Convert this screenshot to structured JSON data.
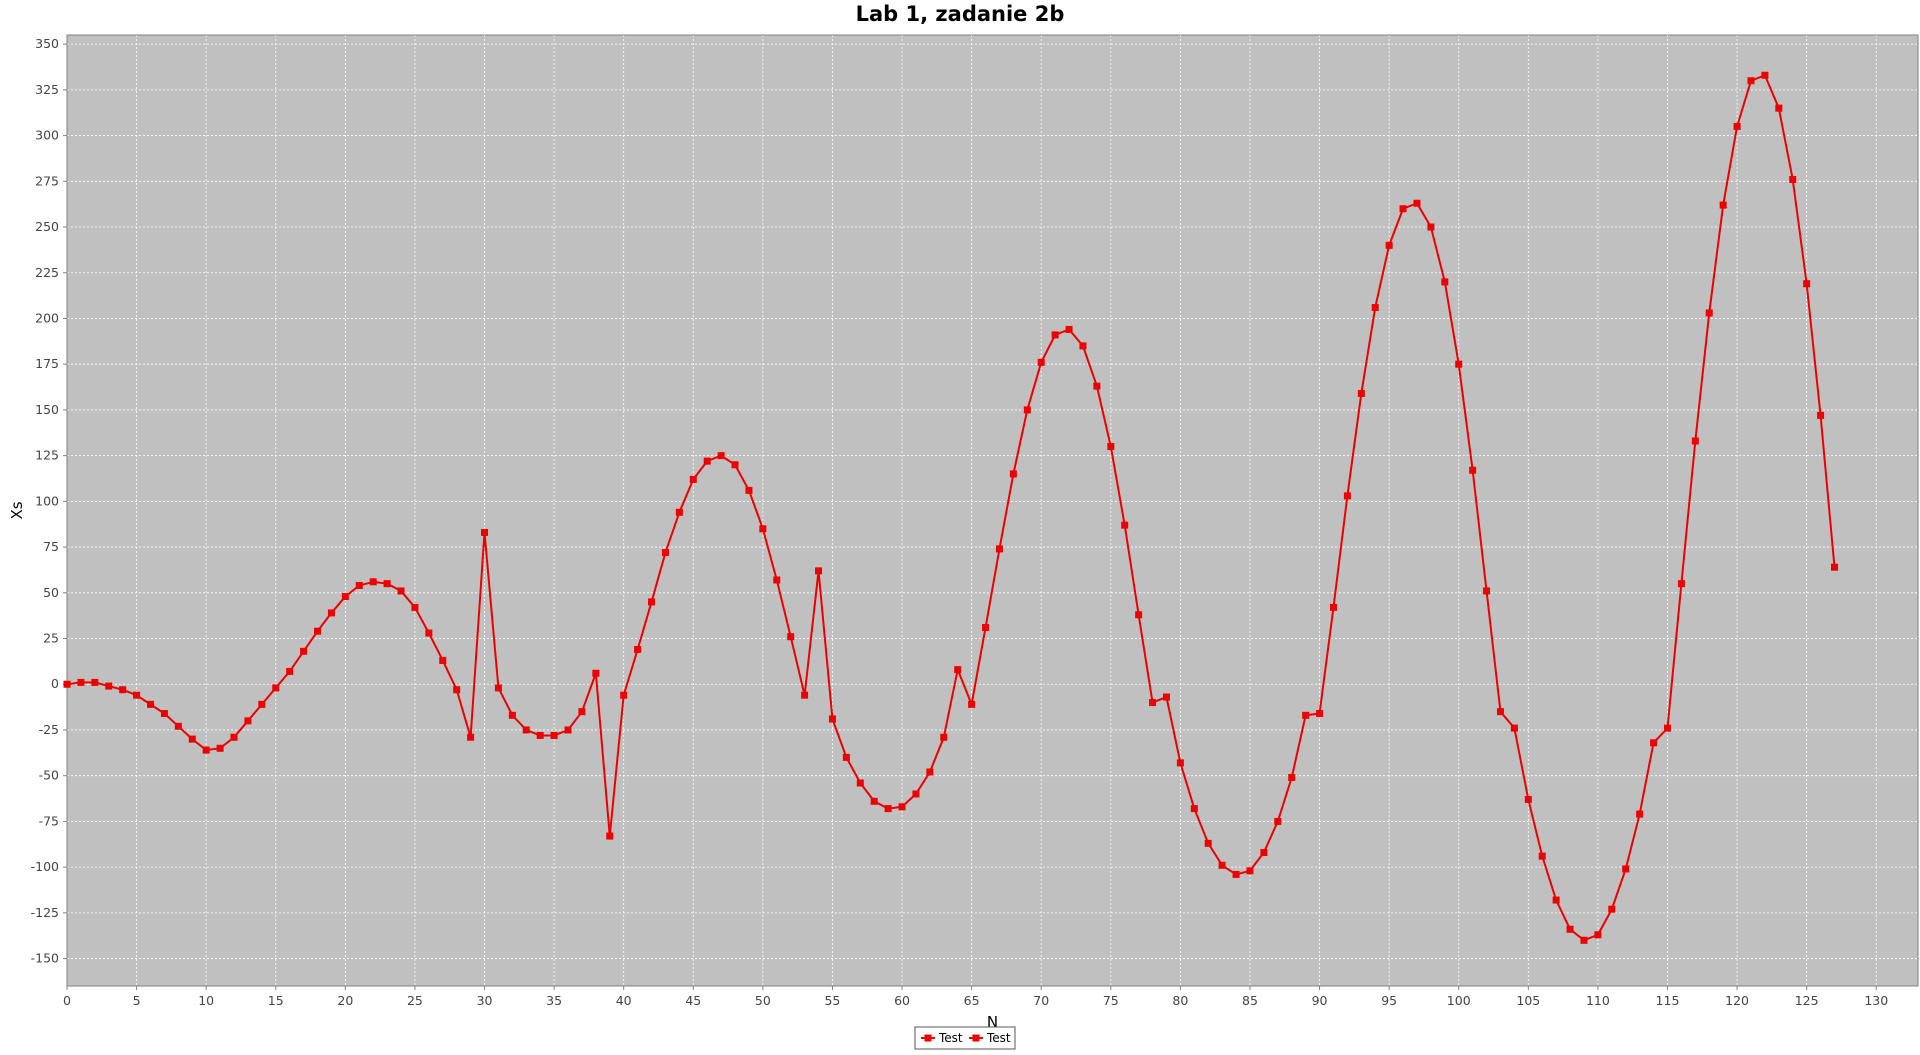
{
  "chart_data": {
    "type": "line",
    "title": "Lab 1, zadanie 2b",
    "xlabel": "N",
    "ylabel": "Xs",
    "xlim": [
      0,
      133
    ],
    "ylim": [
      -165,
      355
    ],
    "x_ticks": [
      0,
      5,
      10,
      15,
      20,
      25,
      30,
      35,
      40,
      45,
      50,
      55,
      60,
      65,
      70,
      75,
      80,
      85,
      90,
      95,
      100,
      105,
      110,
      115,
      120,
      125,
      130
    ],
    "y_ticks": [
      -150,
      -125,
      -100,
      -75,
      -50,
      -25,
      0,
      25,
      50,
      75,
      100,
      125,
      150,
      175,
      200,
      225,
      250,
      275,
      300,
      325,
      350
    ],
    "grid": true,
    "plot_background": "#c0c0c0",
    "series_color": "#ee0000",
    "marker": "square",
    "legend_position": "bottom-center",
    "legend_entries": [
      "Test",
      "Test"
    ],
    "series": [
      {
        "name": "Test",
        "x": [
          0,
          1,
          2,
          3,
          4,
          5,
          6,
          7,
          8,
          9,
          10,
          11,
          12,
          13,
          14,
          15,
          16,
          17,
          18,
          19,
          20,
          21,
          22,
          23,
          24,
          25,
          26,
          27,
          28,
          29,
          30,
          31,
          32,
          33,
          34,
          35,
          36,
          37,
          38,
          39,
          40,
          41,
          42,
          43,
          44,
          45,
          46,
          47,
          48,
          49,
          50,
          51,
          52,
          53,
          54,
          55,
          56,
          57,
          58,
          59,
          60,
          61,
          62,
          63,
          64,
          65,
          66,
          67,
          68,
          69,
          70,
          71,
          72,
          73,
          74,
          75,
          76,
          77,
          78,
          79,
          80,
          81,
          82,
          83,
          84,
          85,
          86,
          87,
          88,
          89,
          90,
          91,
          92,
          93,
          94,
          95,
          96,
          97,
          98,
          99,
          100,
          101,
          102,
          103,
          104,
          105,
          106,
          107,
          108,
          109,
          110,
          111,
          112,
          113,
          114,
          115,
          116,
          117,
          118,
          119,
          120,
          121,
          122,
          123,
          124,
          125,
          126,
          127
        ],
        "values": [
          0,
          1,
          1,
          -1,
          -3,
          -6,
          -11,
          -16,
          -23,
          -30,
          -36,
          -35,
          -29,
          -20,
          -11,
          -2,
          7,
          18,
          29,
          39,
          48,
          54,
          56,
          55,
          51,
          42,
          28,
          13,
          -3,
          -29,
          83,
          -2,
          -17,
          -25,
          -28,
          -28,
          -25,
          -15,
          6,
          -83,
          -6,
          19,
          45,
          72,
          94,
          112,
          122,
          125,
          120,
          106,
          85,
          57,
          26,
          -6,
          62,
          -19,
          -40,
          -54,
          -64,
          -68,
          -67,
          -60,
          -48,
          -29,
          8,
          -11,
          31,
          74,
          115,
          150,
          176,
          191,
          194,
          185,
          163,
          130,
          87,
          38,
          -10,
          -7,
          -43,
          -68,
          -87,
          -99,
          -104,
          -102,
          -92,
          -75,
          -51,
          -17,
          -16,
          42,
          103,
          159,
          206,
          240,
          260,
          263,
          250,
          220,
          175,
          117,
          51,
          -15,
          -24,
          -63,
          -94,
          -118,
          -134,
          -140,
          -137,
          -123,
          -101,
          -71,
          -32,
          -24,
          55,
          133,
          203,
          262,
          305,
          330,
          333,
          315,
          276,
          219,
          147,
          64
        ]
      }
    ]
  }
}
